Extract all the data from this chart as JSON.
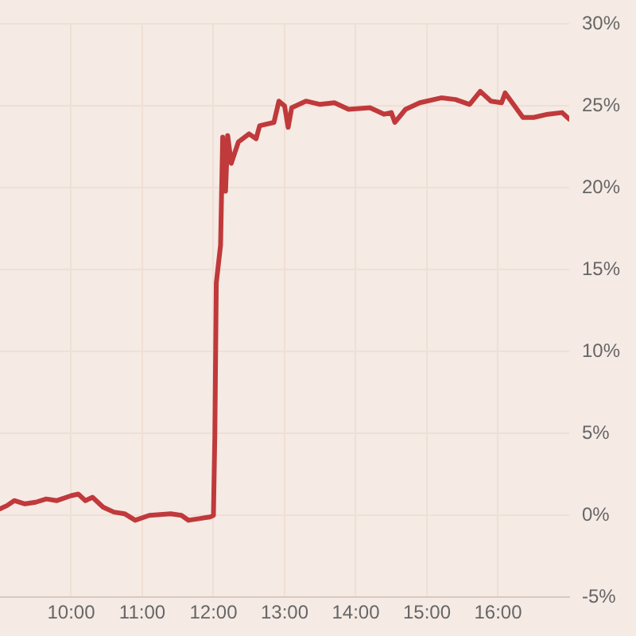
{
  "chart_data": {
    "type": "line",
    "x": [
      9.0,
      9.1,
      9.2,
      9.35,
      9.5,
      9.65,
      9.8,
      10.0,
      10.1,
      10.2,
      10.3,
      10.45,
      10.6,
      10.75,
      10.9,
      11.1,
      11.4,
      11.55,
      11.65,
      11.8,
      11.95,
      12.0,
      12.02,
      12.04,
      12.1,
      12.13,
      12.17,
      12.2,
      12.25,
      12.35,
      12.5,
      12.6,
      12.65,
      12.85,
      12.92,
      13.0,
      13.05,
      13.1,
      13.3,
      13.5,
      13.7,
      13.9,
      14.2,
      14.4,
      14.5,
      14.55,
      14.7,
      14.9,
      15.2,
      15.4,
      15.6,
      15.75,
      15.9,
      16.05,
      16.1,
      16.2,
      16.35,
      16.5,
      16.7,
      16.9,
      17.0
    ],
    "series": [
      {
        "color": "#c0393b",
        "values": [
          0.4,
          0.6,
          0.9,
          0.7,
          0.8,
          1.0,
          0.9,
          1.2,
          1.3,
          0.9,
          1.1,
          0.5,
          0.2,
          0.1,
          -0.3,
          0.0,
          0.1,
          0.0,
          -0.3,
          -0.2,
          -0.1,
          0.0,
          5.0,
          14.2,
          16.5,
          23.1,
          19.8,
          23.2,
          21.5,
          22.8,
          23.3,
          23.0,
          23.8,
          24.0,
          25.3,
          25.0,
          23.7,
          24.9,
          25.3,
          25.1,
          25.2,
          24.8,
          24.9,
          24.5,
          24.6,
          24.0,
          24.8,
          25.2,
          25.5,
          25.4,
          25.1,
          25.9,
          25.3,
          25.2,
          25.8,
          25.2,
          24.3,
          24.3,
          24.5,
          24.6,
          24.2
        ]
      }
    ],
    "xlim": [
      9,
      17
    ],
    "xticks": [
      {
        "value": 10,
        "label": "10:00"
      },
      {
        "value": 11,
        "label": "11:00"
      },
      {
        "value": 12,
        "label": "12:00"
      },
      {
        "value": 13,
        "label": "13:00"
      },
      {
        "value": 14,
        "label": "14:00"
      },
      {
        "value": 15,
        "label": "15:00"
      },
      {
        "value": 16,
        "label": "16:00"
      }
    ],
    "ylim": [
      -5,
      30
    ],
    "yticks": [
      {
        "value": -5,
        "label": "-5%"
      },
      {
        "value": 0,
        "label": "0%"
      },
      {
        "value": 5,
        "label": "5%"
      },
      {
        "value": 10,
        "label": "10%"
      },
      {
        "value": 15,
        "label": "15%"
      },
      {
        "value": 20,
        "label": "20%"
      },
      {
        "value": 25,
        "label": "25%"
      },
      {
        "value": 30,
        "label": "30%"
      }
    ],
    "grid": true,
    "legend": false,
    "marker": "none",
    "line_style": "solid"
  }
}
